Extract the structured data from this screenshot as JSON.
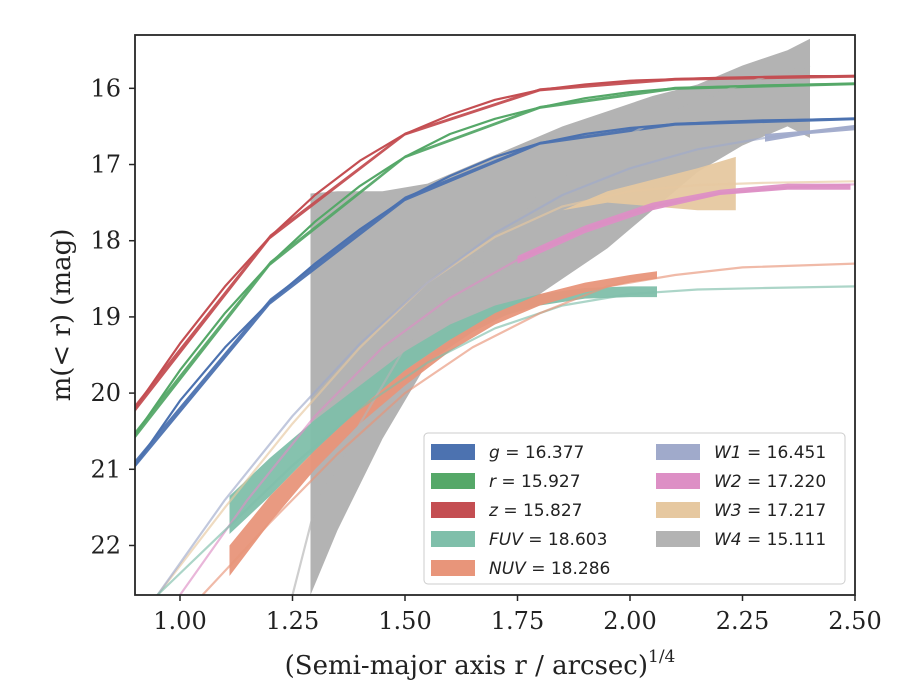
{
  "chart_data": {
    "type": "line",
    "xlabel": "(Semi-major axis r / arcsec)",
    "xlabel_exponent": "1/4",
    "ylabel": "m(< r) (mag)",
    "xlim": [
      0.9,
      2.5
    ],
    "ylim": [
      22.65,
      15.3
    ],
    "y_inverted": true,
    "grid": false,
    "legend_position": "lower-right",
    "x_ticks": [
      "1.00",
      "1.25",
      "1.50",
      "1.75",
      "2.00",
      "2.25",
      "2.50"
    ],
    "y_ticks": [
      "16",
      "17",
      "18",
      "19",
      "20",
      "21",
      "22"
    ],
    "series": [
      {
        "name": "g",
        "label": "= 16.377",
        "color": "#4c72b0",
        "fit": {
          "m_tot": 16.377,
          "x": [
            0.9,
            1.0,
            1.1,
            1.2,
            1.3,
            1.4,
            1.5,
            1.6,
            1.7,
            1.8,
            1.9,
            2.0,
            2.1,
            2.2,
            2.3,
            2.4,
            2.5
          ],
          "y": [
            20.95,
            20.1,
            19.4,
            18.8,
            18.3,
            17.85,
            17.45,
            17.15,
            16.9,
            16.72,
            16.6,
            16.52,
            16.47,
            16.44,
            16.42,
            16.41,
            16.4
          ]
        },
        "band": {
          "x": [
            0.9,
            1.2,
            1.5,
            1.8,
            2.1,
            2.5
          ],
          "lo": [
            20.88,
            18.76,
            17.42,
            16.7,
            16.45,
            16.38
          ],
          "hi": [
            20.98,
            18.84,
            17.48,
            16.74,
            16.49,
            16.42
          ]
        }
      },
      {
        "name": "r",
        "label": "= 15.927",
        "color": "#55a868",
        "fit": {
          "m_tot": 15.927,
          "x": [
            0.9,
            1.0,
            1.1,
            1.2,
            1.3,
            1.4,
            1.5,
            1.6,
            1.7,
            1.8,
            1.9,
            2.0,
            2.1,
            2.2,
            2.3,
            2.4,
            2.5
          ],
          "y": [
            20.55,
            19.7,
            18.95,
            18.3,
            17.75,
            17.28,
            16.9,
            16.6,
            16.4,
            16.25,
            16.13,
            16.05,
            16.0,
            15.98,
            15.96,
            15.95,
            15.94
          ]
        },
        "band": {
          "x": [
            0.9,
            1.2,
            1.5,
            1.8,
            2.1,
            2.5
          ],
          "lo": [
            20.5,
            18.27,
            16.88,
            16.23,
            15.98,
            15.92
          ],
          "hi": [
            20.6,
            18.33,
            16.92,
            16.27,
            16.02,
            15.96
          ]
        }
      },
      {
        "name": "z",
        "label": "= 15.827",
        "color": "#c44e52",
        "fit": {
          "m_tot": 15.827,
          "x": [
            0.9,
            1.0,
            1.1,
            1.2,
            1.3,
            1.4,
            1.5,
            1.6,
            1.7,
            1.8,
            1.9,
            2.0,
            2.1,
            2.2,
            2.3,
            2.4,
            2.5
          ],
          "y": [
            20.2,
            19.35,
            18.6,
            17.95,
            17.4,
            16.95,
            16.6,
            16.35,
            16.15,
            16.02,
            15.95,
            15.9,
            15.88,
            15.86,
            15.85,
            15.84,
            15.84
          ]
        },
        "band": {
          "x": [
            0.9,
            1.2,
            1.5,
            1.8,
            2.1,
            2.5
          ],
          "lo": [
            20.15,
            17.92,
            16.58,
            16.0,
            15.86,
            15.82
          ],
          "hi": [
            20.25,
            17.98,
            16.62,
            16.04,
            15.9,
            15.86
          ]
        }
      },
      {
        "name": "FUV",
        "label": "= 18.603",
        "color": "#7fbfaa",
        "fit": {
          "m_tot": 18.603,
          "x": [
            0.95,
            1.1,
            1.25,
            1.4,
            1.55,
            1.7,
            1.85,
            2.0,
            2.15,
            2.3,
            2.5
          ],
          "y": [
            22.65,
            21.8,
            20.95,
            20.2,
            19.6,
            19.15,
            18.85,
            18.7,
            18.64,
            18.62,
            18.6
          ]
        },
        "band": {
          "x": [
            1.11,
            1.2,
            1.3,
            1.4,
            1.5,
            1.6,
            1.7,
            1.8,
            1.9,
            2.0,
            2.06
          ],
          "lo": [
            21.35,
            20.85,
            20.35,
            19.9,
            19.45,
            19.1,
            18.85,
            18.7,
            18.62,
            18.6,
            18.6
          ],
          "hi": [
            21.85,
            21.35,
            20.75,
            20.2,
            19.7,
            19.3,
            19.02,
            18.85,
            18.76,
            18.74,
            18.74
          ]
        }
      },
      {
        "name": "NUV",
        "label": "= 18.286",
        "color": "#e8957a",
        "fit": {
          "m_tot": 18.286,
          "x": [
            1.05,
            1.2,
            1.35,
            1.5,
            1.65,
            1.8,
            1.95,
            2.1,
            2.25,
            2.5
          ],
          "y": [
            22.65,
            21.7,
            20.8,
            20.0,
            19.4,
            18.95,
            18.6,
            18.45,
            18.35,
            18.3
          ]
        },
        "band": {
          "x": [
            1.11,
            1.2,
            1.3,
            1.4,
            1.5,
            1.6,
            1.7,
            1.8,
            1.9,
            2.0,
            2.06
          ],
          "lo": [
            22.0,
            21.35,
            20.75,
            20.2,
            19.7,
            19.3,
            18.95,
            18.7,
            18.55,
            18.45,
            18.4
          ],
          "hi": [
            22.4,
            21.7,
            21.0,
            20.4,
            19.9,
            19.45,
            19.1,
            18.85,
            18.68,
            18.55,
            18.5
          ]
        }
      },
      {
        "name": "W1",
        "label": "= 16.451",
        "color": "#a0aacb",
        "fit": {
          "m_tot": 16.451,
          "x": [
            0.95,
            1.1,
            1.25,
            1.4,
            1.55,
            1.7,
            1.85,
            2.0,
            2.15,
            2.3,
            2.5
          ],
          "y": [
            22.65,
            21.4,
            20.3,
            19.35,
            18.55,
            17.9,
            17.4,
            17.05,
            16.8,
            16.65,
            16.5
          ]
        },
        "band": {
          "x": [
            2.3,
            2.4,
            2.5
          ],
          "lo": [
            16.6,
            16.55,
            16.48
          ],
          "hi": [
            16.7,
            16.6,
            16.55
          ]
        }
      },
      {
        "name": "W2",
        "label": "= 17.220",
        "color": "#dd8fc5",
        "fit": {
          "m_tot": 17.22,
          "x": [
            1.0,
            1.15,
            1.3,
            1.45,
            1.6,
            1.75,
            1.9,
            2.05,
            2.2,
            2.35,
            2.5
          ],
          "y": [
            22.65,
            21.4,
            20.3,
            19.4,
            18.75,
            18.25,
            17.85,
            17.55,
            17.38,
            17.3,
            17.26
          ]
        },
        "band": {
          "x": [
            1.75,
            1.9,
            2.05,
            2.2,
            2.35,
            2.49
          ],
          "lo": [
            18.2,
            17.8,
            17.5,
            17.33,
            17.25,
            17.25
          ],
          "hi": [
            18.3,
            17.9,
            17.6,
            17.4,
            17.33,
            17.33
          ]
        }
      },
      {
        "name": "W3",
        "label": "= 17.217",
        "color": "#e6c8a0",
        "fit": {
          "m_tot": 17.217,
          "x": [
            0.95,
            1.1,
            1.25,
            1.4,
            1.55,
            1.7,
            1.85,
            2.0,
            2.15,
            2.3,
            2.5
          ],
          "y": [
            22.65,
            21.5,
            20.4,
            19.4,
            18.55,
            17.95,
            17.55,
            17.35,
            17.27,
            17.24,
            17.22
          ]
        },
        "band": {
          "x": [
            1.85,
            1.95,
            2.05,
            2.15,
            2.235
          ],
          "lo": [
            17.6,
            17.35,
            17.2,
            17.05,
            16.9
          ],
          "hi": [
            17.6,
            17.5,
            17.55,
            17.6,
            17.6
          ]
        }
      },
      {
        "name": "W4",
        "label": "= 15.111",
        "color": "#b3b3b3",
        "fit": {
          "m_tot": 15.111,
          "x": [
            1.25,
            1.3,
            1.4,
            1.5,
            1.6,
            1.7,
            1.8,
            1.9,
            2.0,
            2.1,
            2.2,
            2.3,
            2.4
          ],
          "y": [
            22.65,
            21.5,
            20.4,
            19.4,
            18.6,
            17.95,
            17.4,
            17.0,
            16.6,
            16.3,
            16.05,
            15.85,
            15.7
          ]
        },
        "band": {
          "x": [
            1.29,
            1.35,
            1.45,
            1.55,
            1.65,
            1.75,
            1.85,
            1.95,
            2.05,
            2.15,
            2.25,
            2.35,
            2.4
          ],
          "lo": [
            17.38,
            17.35,
            17.35,
            17.25,
            17.0,
            16.75,
            16.5,
            16.3,
            16.1,
            15.95,
            15.7,
            15.5,
            15.35
          ],
          "hi": [
            22.65,
            21.8,
            20.6,
            19.6,
            19.2,
            18.9,
            18.5,
            18.1,
            17.6,
            17.1,
            16.75,
            16.5,
            16.65
          ]
        }
      }
    ]
  }
}
